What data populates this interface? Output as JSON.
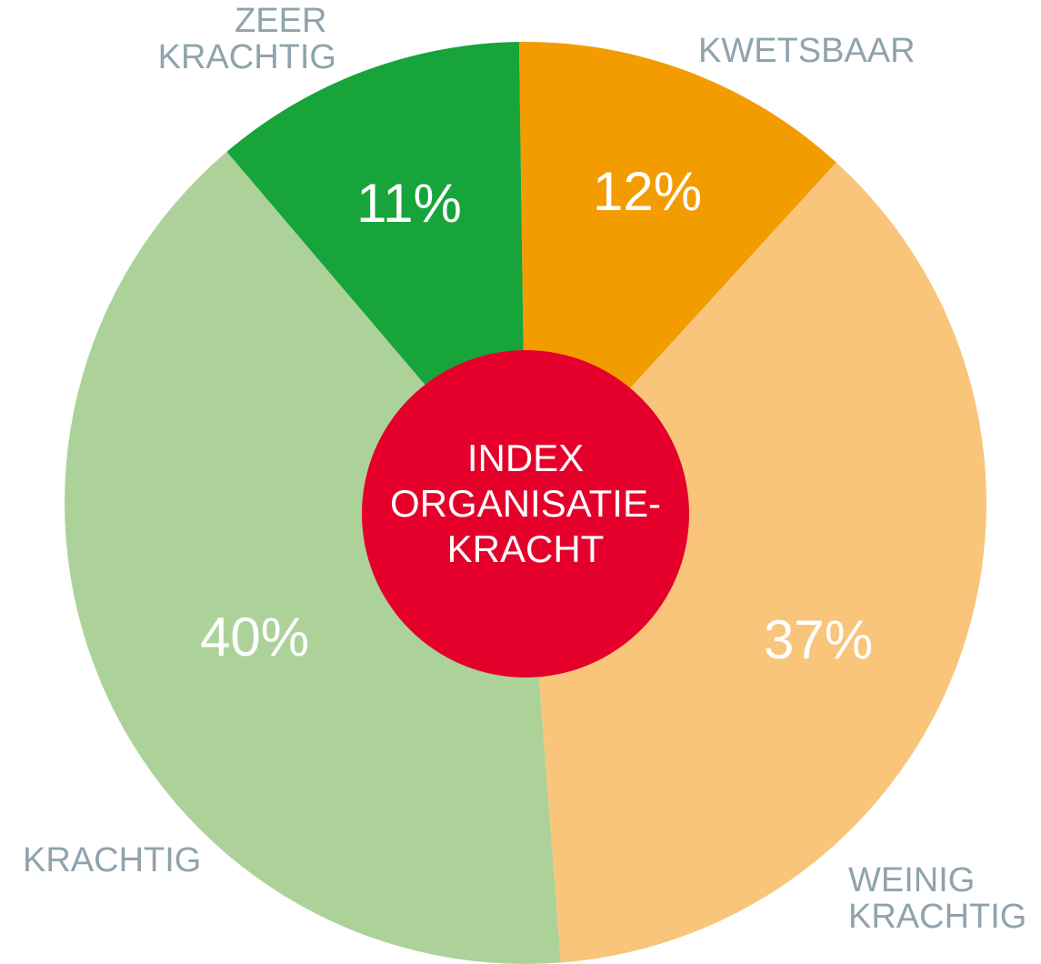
{
  "chart_data": {
    "type": "pie",
    "categories": [
      "KWETSBAAR",
      "WEINIG KRACHTIG",
      "KRACHTIG",
      "ZEER KRACHTIG"
    ],
    "values": [
      12,
      37,
      40,
      11
    ],
    "value_labels": [
      "12%",
      "37%",
      "40%",
      "11%"
    ],
    "colors": [
      "#f39c00",
      "#f9c57a",
      "#acd29a",
      "#17a43b"
    ],
    "center_label": [
      "INDEX",
      "ORGANISATIE-",
      "KRACHT"
    ],
    "center_color": "#e4002b"
  }
}
